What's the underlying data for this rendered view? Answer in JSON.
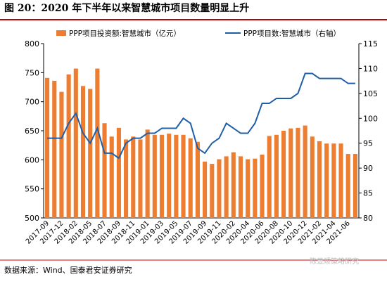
{
  "chart_data": {
    "type": "bar-line",
    "title": "图 20：2020 年下半年以来智慧城市项目数量明显上升",
    "source": "数据来源：Wind、国泰君安证券研究",
    "watermark": "陈显顺策略研究",
    "categories": [
      "2017-09",
      null,
      "2017-12",
      null,
      "2018-02",
      null,
      "2018-05",
      null,
      "2018-07",
      null,
      "2018-09",
      null,
      "2018-11",
      null,
      "2019-01",
      null,
      "2019-03",
      null,
      "2019-05",
      null,
      "2019-07",
      null,
      "2019-09",
      null,
      "2019-11",
      null,
      "2020-02",
      null,
      "2020-04",
      null,
      "2020-06",
      null,
      "2020-08",
      null,
      "2020-10",
      null,
      "2020-12",
      null,
      "2021-02",
      null,
      "2021-04",
      null,
      "2021-06",
      null
    ],
    "series": [
      {
        "name": "PPP项目投资额:智慧城市（亿元）",
        "color": "#ED7D31",
        "axis": "y",
        "values": [
          741,
          736,
          717,
          747,
          757,
          727,
          722,
          757,
          663,
          640,
          655,
          635,
          640,
          635,
          652,
          643,
          643,
          645,
          643,
          643,
          637,
          631,
          597,
          593,
          601,
          606,
          613,
          606,
          601,
          602,
          609,
          641,
          643,
          650,
          654,
          655,
          659,
          640,
          632,
          628,
          628,
          628,
          610,
          610
        ]
      },
      {
        "name": "PPP项目数:智慧城市（右轴）",
        "color": "#1F5FA8",
        "axis": "y2",
        "values": [
          96,
          96,
          96,
          99,
          101,
          97,
          95,
          98,
          93,
          93,
          92,
          95,
          96,
          96,
          97,
          97,
          98,
          98,
          98,
          100,
          99,
          94,
          93,
          95,
          96,
          99,
          98,
          97,
          97,
          99,
          103,
          103,
          104,
          104,
          104,
          105,
          109,
          109,
          108,
          108,
          108,
          108,
          107,
          107
        ]
      }
    ],
    "ylim": [
      500,
      800
    ],
    "yticks": [
      500,
      550,
      600,
      650,
      700,
      750,
      800
    ],
    "y2lim": [
      80,
      115
    ],
    "y2ticks": [
      80,
      85,
      90,
      95,
      100,
      105,
      110,
      115
    ]
  }
}
